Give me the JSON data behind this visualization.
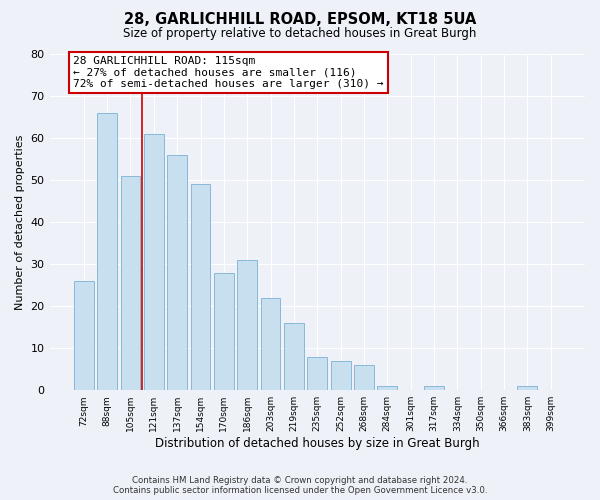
{
  "title": "28, GARLICHHILL ROAD, EPSOM, KT18 5UA",
  "subtitle": "Size of property relative to detached houses in Great Burgh",
  "xlabel": "Distribution of detached houses by size in Great Burgh",
  "ylabel": "Number of detached properties",
  "categories": [
    "72sqm",
    "88sqm",
    "105sqm",
    "121sqm",
    "137sqm",
    "154sqm",
    "170sqm",
    "186sqm",
    "203sqm",
    "219sqm",
    "235sqm",
    "252sqm",
    "268sqm",
    "284sqm",
    "301sqm",
    "317sqm",
    "334sqm",
    "350sqm",
    "366sqm",
    "383sqm",
    "399sqm"
  ],
  "values": [
    26,
    66,
    51,
    61,
    56,
    49,
    28,
    31,
    22,
    16,
    8,
    7,
    6,
    1,
    0,
    1,
    0,
    0,
    0,
    1,
    0
  ],
  "bar_color": "#c8dff0",
  "bar_edge_color": "#89b8d8",
  "property_line_color": "#cc0000",
  "annotation_box_color": "#ffffff",
  "annotation_box_edge_color": "#cc0000",
  "annotation_line1": "28 GARLICHHILL ROAD: 115sqm",
  "annotation_line2": "← 27% of detached houses are smaller (116)",
  "annotation_line3": "72% of semi-detached houses are larger (310) →",
  "ylim": [
    0,
    80
  ],
  "yticks": [
    0,
    10,
    20,
    30,
    40,
    50,
    60,
    70,
    80
  ],
  "background_color": "#eef2f8",
  "grid_color": "#ffffff",
  "footer_line1": "Contains HM Land Registry data © Crown copyright and database right 2024.",
  "footer_line2": "Contains public sector information licensed under the Open Government Licence v3.0."
}
